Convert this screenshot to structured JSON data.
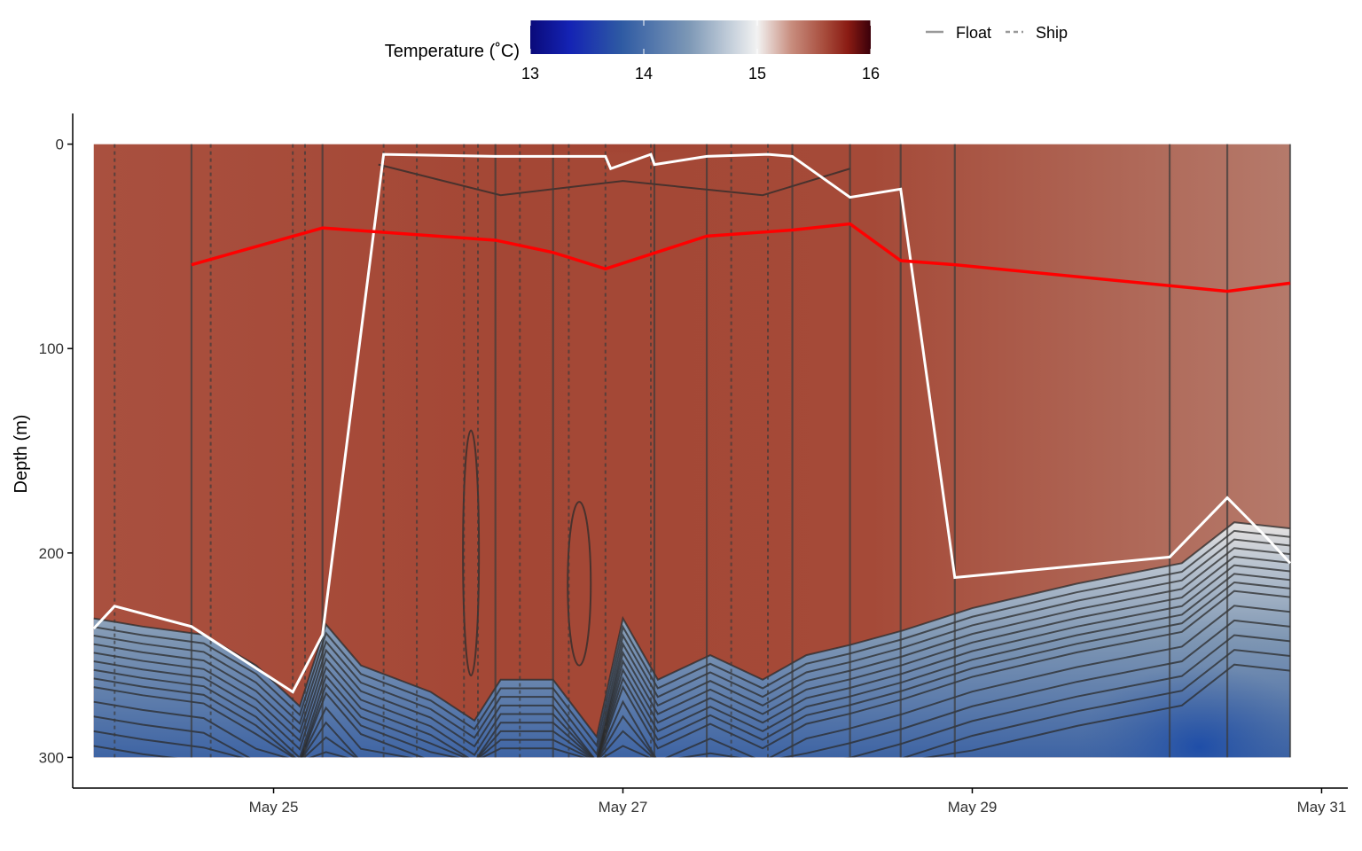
{
  "chart_data": {
    "type": "heatmap",
    "title": "",
    "xlabel": "",
    "ylabel": "Depth (m)",
    "x_ticks": [
      "May 25",
      "May 27",
      "May 29",
      "May 31"
    ],
    "x_tick_days": [
      25,
      27,
      29,
      31
    ],
    "xlim_days": [
      23.85,
      31.15
    ],
    "y_ticks": [
      0,
      100,
      200,
      300
    ],
    "ylim": [
      315,
      -15
    ],
    "y_reversed": true,
    "grid": false,
    "colorbar": {
      "title": "Temperature (˚C)",
      "ticks": [
        13,
        14,
        15,
        16
      ],
      "range": [
        13,
        16
      ],
      "colors": [
        {
          "value": 13.0,
          "color": "#0a0a7a"
        },
        {
          "value": 13.35,
          "color": "#1423b4"
        },
        {
          "value": 13.8,
          "color": "#2e5aa3"
        },
        {
          "value": 14.4,
          "color": "#7d98b6"
        },
        {
          "value": 15.0,
          "color": "#f2f2f2"
        },
        {
          "value": 15.3,
          "color": "#c88d7e"
        },
        {
          "value": 15.6,
          "color": "#a64a3a"
        },
        {
          "value": 15.8,
          "color": "#8a1b13"
        },
        {
          "value": 16.0,
          "color": "#3a000a"
        }
      ]
    },
    "legend": {
      "placement": "top-right",
      "entries": [
        {
          "label": "Float",
          "style": "solid"
        },
        {
          "label": "Ship",
          "style": "dashed"
        }
      ]
    },
    "profiles_float_days": [
      24.53,
      25.28,
      26.27,
      26.6,
      27.18,
      27.48,
      27.97,
      28.3,
      28.59,
      28.9,
      30.13,
      30.46,
      30.82
    ],
    "profiles_ship_days": [
      24.09,
      24.64,
      25.11,
      25.18,
      25.63,
      25.82,
      26.09,
      26.17,
      26.41,
      26.69,
      26.9,
      27.16,
      27.62,
      27.83
    ],
    "red_line": {
      "days": [
        24.53,
        25.28,
        26.27,
        26.6,
        26.9,
        27.48,
        27.97,
        28.3,
        28.59,
        28.9,
        30.46,
        30.82
      ],
      "depths": [
        59,
        41,
        47,
        53,
        61,
        45,
        42,
        39,
        57,
        59,
        72,
        68
      ]
    },
    "white_line": {
      "days": [
        23.97,
        24.09,
        24.53,
        25.11,
        25.28,
        25.63,
        26.27,
        26.6,
        26.9,
        26.93,
        27.16,
        27.18,
        27.48,
        27.83,
        27.97,
        28.3,
        28.59,
        28.9,
        30.13,
        30.46,
        30.68,
        30.82
      ],
      "depths": [
        237,
        226,
        236,
        268,
        240,
        5,
        6,
        6,
        6,
        12,
        5,
        10,
        6,
        5,
        6,
        26,
        22,
        212,
        202,
        173,
        192,
        205
      ]
    },
    "contour_bottom_days": [
      23.97,
      24.25,
      24.6,
      24.9,
      25.15,
      25.3,
      25.5,
      25.9,
      26.15,
      26.3,
      26.6,
      26.85,
      27.0,
      27.2,
      27.5,
      27.8,
      28.05,
      28.3,
      28.6,
      29.0,
      29.6,
      30.2,
      30.5,
      30.82
    ],
    "contour_bottom_depths": [
      232,
      236,
      240,
      255,
      275,
      235,
      255,
      268,
      282,
      262,
      262,
      290,
      232,
      262,
      250,
      262,
      250,
      245,
      238,
      227,
      215,
      205,
      185,
      188
    ]
  }
}
